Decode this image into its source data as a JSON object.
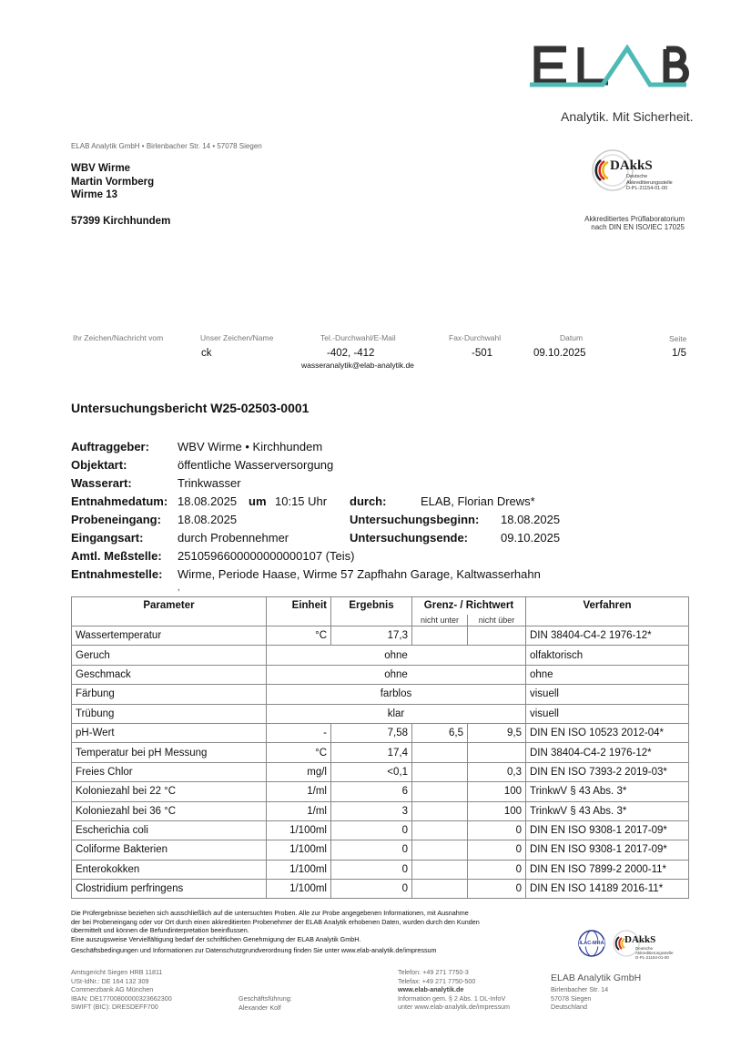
{
  "logo": {
    "brand": "ELAB",
    "tagline": "Analytik. Mit Sicherheit.",
    "accent": "#4dbab5",
    "dark": "#333333"
  },
  "sender_line": "ELAB Analytik GmbH • Birlenbacher Str. 14 • 57078 Siegen",
  "recipient": [
    "WBV Wirme",
    "Martin Vormberg",
    "Wirme 13",
    "",
    "57399 Kirchhundem"
  ],
  "accreditation": {
    "seal_text": "DAkkS",
    "seal_sub": [
      "Deutsche",
      "Akkreditierungsstelle",
      "D-PL-21154-01-00"
    ],
    "lines": [
      "Akkreditiertes Prüflaboratorium",
      "nach DIN EN ISO/IEC 17025"
    ]
  },
  "reference": {
    "headers": [
      "Ihr Zeichen/Nachricht vom",
      "Unser Zeichen/Name",
      "Tel.-Durchwahl/E-Mail",
      "Fax-Durchwahl",
      "Datum",
      "Seite"
    ],
    "values": [
      "",
      "ck",
      "-402, -412",
      "-501",
      "09.10.2025",
      "1/5"
    ],
    "email": "wasseranalytik@elab-analytik.de"
  },
  "report_title": "Untersuchungsbericht W25-02503-0001",
  "info": [
    {
      "label": "Auftraggeber:",
      "value": "WBV Wirme • Kirchhundem"
    },
    {
      "label": "Objektart:",
      "value": "öffentliche Wasserversorgung"
    },
    {
      "label": "Wasserart:",
      "value": "Trinkwasser"
    },
    {
      "label": "Entnahmedatum:",
      "value": "18.08.2025",
      "mid_label": "um",
      "mid_value": "10:15 Uhr",
      "label2": "durch:",
      "value2": "ELAB, Florian Drews*"
    },
    {
      "label": "Probeneingang:",
      "value": "18.08.2025",
      "label2": "Untersuchungsbeginn:",
      "value2": "18.08.2025"
    },
    {
      "label": "Eingangsart:",
      "value": "durch Probennehmer",
      "label2": "Untersuchungsende:",
      "value2": "09.10.2025"
    },
    {
      "label": "Amtl. Meßstelle:",
      "value": "2510596600000000000107 (Teis)"
    },
    {
      "label": "Entnahmestelle:",
      "value": "Wirme, Periode Haase, Wirme 57 Zapfhahn Garage, Kaltwasserhahn"
    }
  ],
  "info_trailing": ",",
  "table": {
    "headers": {
      "parameter": "Parameter",
      "unit": "Einheit",
      "result": "Ergebnis",
      "limit": "Grenz- / Richtwert",
      "min": "nicht unter",
      "max": "nicht über",
      "method": "Verfahren"
    },
    "rows": [
      {
        "parameter": "Wassertemperatur",
        "unit": "°C",
        "result": "17,3",
        "min": "",
        "max": "",
        "method": "DIN 38404-C4-2 1976-12*"
      },
      {
        "parameter": "Geruch",
        "span": "ohne",
        "method": "olfaktorisch"
      },
      {
        "parameter": "Geschmack",
        "span": "ohne",
        "method": "ohne"
      },
      {
        "parameter": "Färbung",
        "span": "farblos",
        "method": "visuell"
      },
      {
        "parameter": "Trübung",
        "span": "klar",
        "method": "visuell"
      },
      {
        "parameter": "pH-Wert",
        "unit": "-",
        "result": "7,58",
        "min": "6,5",
        "max": "9,5",
        "method": "DIN EN ISO 10523 2012-04*"
      },
      {
        "parameter": "Temperatur bei pH Messung",
        "unit": "°C",
        "result": "17,4",
        "min": "",
        "max": "",
        "method": "DIN 38404-C4-2 1976-12*"
      },
      {
        "parameter": "Freies Chlor",
        "unit": "mg/l",
        "result": "<0,1",
        "min": "",
        "max": "0,3",
        "method": "DIN EN ISO 7393-2 2019-03*"
      },
      {
        "parameter": "Koloniezahl bei 22 °C",
        "unit": "1/ml",
        "result": "6",
        "min": "",
        "max": "100",
        "method": "TrinkwV § 43 Abs. 3*"
      },
      {
        "parameter": "Koloniezahl bei 36 °C",
        "unit": "1/ml",
        "result": "3",
        "min": "",
        "max": "100",
        "method": "TrinkwV § 43 Abs. 3*"
      },
      {
        "parameter": "Escherichia coli",
        "unit": "1/100ml",
        "result": "0",
        "min": "",
        "max": "0",
        "method": "DIN EN ISO 9308-1 2017-09*"
      },
      {
        "parameter": "Coliforme Bakterien",
        "unit": "1/100ml",
        "result": "0",
        "min": "",
        "max": "0",
        "method": "DIN EN ISO 9308-1 2017-09*"
      },
      {
        "parameter": "Enterokokken",
        "unit": "1/100ml",
        "result": "0",
        "min": "",
        "max": "0",
        "method": "DIN EN ISO 7899-2 2000-11*"
      },
      {
        "parameter": "Clostridium perfringens",
        "unit": "1/100ml",
        "result": "0",
        "min": "",
        "max": "0",
        "method": "DIN EN ISO 14189 2016-11*"
      }
    ]
  },
  "disclaimer": [
    "Die Prüfergebnisse beziehen sich ausschließlich auf die untersuchten Proben. Alle zur Probe angegebenen Informationen, mit Ausnahme",
    "der bei Probeneingang oder vor Ort durch einen akkreditierten Probenehmer der ELAB Analytik erhobenen Daten, wurden durch den Kunden",
    "übermittelt und können die Befundinterpretation beeinflussen.",
    "Eine auszugsweise Vervielfältigung bedarf der schriftlichen Genehmigung der ELAB Analytik GmbH."
  ],
  "privacy_line": "Geschäftsbedingungen und Informationen zur Datenschutzgrundverordnung finden Sie unter www.elab-analytik.de/impressum",
  "footer": {
    "col1": [
      "Amtsgericht Siegen HRB 11811",
      "USt-IdNr.: DE 164 132 309",
      "Commerzbank AG München",
      "IBAN: DE17700800000323662300",
      "SWIFT (BIC): DRESDEFF700"
    ],
    "col2": [
      "Geschäftsführung:",
      "Alexander Kolf"
    ],
    "col3": [
      "Telefon: +49 271 7750-3",
      "Telefax: +49 271 7750-500",
      "www.elab-analytik.de",
      "Information gem. § 2 Abs. 1 DL-InfoV",
      "unter www.elab-analytik.de/impressum"
    ],
    "company": "ELAB Analytik GmbH",
    "col4": [
      "Birlenbacher Str. 14",
      "57078 Siegen",
      "Deutschland"
    ],
    "seal_text": "DAkkS",
    "seal_sub": [
      "Deutsche",
      "Akkreditierungsstelle",
      "D-PL-21154-01-00"
    ],
    "seal2_text": "ILAC-MRA"
  }
}
